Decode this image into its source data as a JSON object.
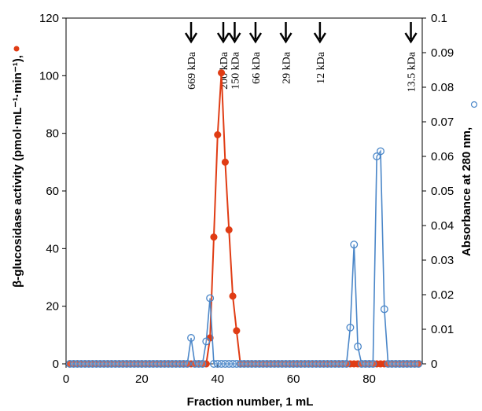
{
  "chart_data": {
    "type": "line",
    "xlabel": "Fraction number, 1 mL",
    "ylabel_left": "β-glucosidase activity (pmol·mL⁻¹·min⁻¹),",
    "ylabel_right": "Absorbance at 280 nm,",
    "xlim": [
      0,
      94
    ],
    "ylim_left": [
      0,
      120
    ],
    "ylim_right": [
      0,
      0.1
    ],
    "x_ticks": [
      "0",
      "20",
      "40",
      "60",
      "80"
    ],
    "y_left_ticks": [
      "0",
      "20",
      "40",
      "60",
      "80",
      "100",
      "120"
    ],
    "y_right_ticks": [
      "0",
      "0.01",
      "0.02",
      "0.03",
      "0.04",
      "0.05",
      "0.06",
      "0.07",
      "0.08",
      "0.09",
      "0.1"
    ],
    "grid": false,
    "colors": {
      "activity": "#e03c14",
      "absorbance": "#4a86c8"
    },
    "markers": [
      {
        "label": "669 kDa",
        "x": 33
      },
      {
        "label": "200 kDa",
        "x": 41.5
      },
      {
        "label": "150 kDa",
        "x": 44.5
      },
      {
        "label": "66 kDa",
        "x": 50
      },
      {
        "label": "29 kDa",
        "x": 58
      },
      {
        "label": "12 kDa",
        "x": 67
      },
      {
        "label": "13.5 kDa",
        "x": 91
      }
    ],
    "series": [
      {
        "axis": "left",
        "color": "#e03c14",
        "marker": "filled-circle",
        "points": [
          [
            1,
            0
          ],
          [
            2,
            0
          ],
          [
            3,
            0
          ],
          [
            4,
            0
          ],
          [
            5,
            0
          ],
          [
            6,
            0
          ],
          [
            7,
            0
          ],
          [
            8,
            0
          ],
          [
            9,
            0
          ],
          [
            10,
            0
          ],
          [
            11,
            0
          ],
          [
            12,
            0
          ],
          [
            13,
            0
          ],
          [
            14,
            0
          ],
          [
            15,
            0
          ],
          [
            16,
            0
          ],
          [
            17,
            0
          ],
          [
            18,
            0
          ],
          [
            19,
            0
          ],
          [
            20,
            0
          ],
          [
            21,
            0
          ],
          [
            22,
            0
          ],
          [
            23,
            0
          ],
          [
            24,
            0
          ],
          [
            25,
            0
          ],
          [
            26,
            0
          ],
          [
            27,
            0
          ],
          [
            28,
            0
          ],
          [
            29,
            0
          ],
          [
            30,
            0
          ],
          [
            31,
            0
          ],
          [
            32,
            0
          ],
          [
            33,
            0
          ],
          [
            34,
            0
          ],
          [
            35,
            0
          ],
          [
            36,
            0
          ],
          [
            37,
            0
          ],
          [
            38,
            9
          ],
          [
            39,
            44
          ],
          [
            40,
            79.5
          ],
          [
            41,
            101
          ],
          [
            42,
            70
          ],
          [
            43,
            46.5
          ],
          [
            44,
            23.5
          ],
          [
            45,
            11.5
          ],
          [
            46,
            0
          ],
          [
            47,
            0
          ],
          [
            48,
            0
          ],
          [
            49,
            0
          ],
          [
            50,
            0
          ],
          [
            51,
            0
          ],
          [
            52,
            0
          ],
          [
            53,
            0
          ],
          [
            54,
            0
          ],
          [
            55,
            0
          ],
          [
            56,
            0
          ],
          [
            57,
            0
          ],
          [
            58,
            0
          ],
          [
            59,
            0
          ],
          [
            60,
            0
          ],
          [
            61,
            0
          ],
          [
            62,
            0
          ],
          [
            63,
            0
          ],
          [
            64,
            0
          ],
          [
            65,
            0
          ],
          [
            66,
            0
          ],
          [
            67,
            0
          ],
          [
            68,
            0
          ],
          [
            69,
            0
          ],
          [
            70,
            0
          ],
          [
            71,
            0
          ],
          [
            72,
            0
          ],
          [
            73,
            0
          ],
          [
            74,
            0
          ],
          [
            75,
            0
          ],
          [
            76,
            0
          ],
          [
            77,
            0
          ],
          [
            78,
            0
          ],
          [
            79,
            0
          ],
          [
            80,
            0
          ],
          [
            81,
            0
          ],
          [
            82,
            0
          ],
          [
            83,
            0
          ],
          [
            84,
            0
          ],
          [
            85,
            0
          ],
          [
            86,
            0
          ],
          [
            87,
            0
          ],
          [
            88,
            0
          ],
          [
            89,
            0
          ],
          [
            90,
            0
          ],
          [
            91,
            0
          ],
          [
            92,
            0
          ],
          [
            93,
            0
          ]
        ]
      },
      {
        "axis": "right",
        "color": "#4a86c8",
        "marker": "open-circle",
        "points": [
          [
            1,
            0
          ],
          [
            2,
            0
          ],
          [
            3,
            0
          ],
          [
            4,
            0
          ],
          [
            5,
            0
          ],
          [
            6,
            0
          ],
          [
            7,
            0
          ],
          [
            8,
            0
          ],
          [
            9,
            0
          ],
          [
            10,
            0
          ],
          [
            11,
            0
          ],
          [
            12,
            0
          ],
          [
            13,
            0
          ],
          [
            14,
            0
          ],
          [
            15,
            0
          ],
          [
            16,
            0
          ],
          [
            17,
            0
          ],
          [
            18,
            0
          ],
          [
            19,
            0
          ],
          [
            20,
            0
          ],
          [
            21,
            0
          ],
          [
            22,
            0
          ],
          [
            23,
            0
          ],
          [
            24,
            0
          ],
          [
            25,
            0
          ],
          [
            26,
            0
          ],
          [
            27,
            0
          ],
          [
            28,
            0
          ],
          [
            29,
            0
          ],
          [
            30,
            0
          ],
          [
            31,
            0
          ],
          [
            32,
            0
          ],
          [
            33,
            0.0075
          ],
          [
            34,
            0
          ],
          [
            35,
            0
          ],
          [
            36,
            0
          ],
          [
            37,
            0.0065
          ],
          [
            38,
            0.019
          ],
          [
            39,
            0
          ],
          [
            40,
            0
          ],
          [
            41,
            0
          ],
          [
            42,
            0
          ],
          [
            43,
            0
          ],
          [
            44,
            0
          ],
          [
            45,
            0
          ],
          [
            46,
            0
          ],
          [
            47,
            0
          ],
          [
            48,
            0
          ],
          [
            49,
            0
          ],
          [
            50,
            0
          ],
          [
            51,
            0
          ],
          [
            52,
            0
          ],
          [
            53,
            0
          ],
          [
            54,
            0
          ],
          [
            55,
            0
          ],
          [
            56,
            0
          ],
          [
            57,
            0
          ],
          [
            58,
            0
          ],
          [
            59,
            0
          ],
          [
            60,
            0
          ],
          [
            61,
            0
          ],
          [
            62,
            0
          ],
          [
            63,
            0
          ],
          [
            64,
            0
          ],
          [
            65,
            0
          ],
          [
            66,
            0
          ],
          [
            67,
            0
          ],
          [
            68,
            0
          ],
          [
            69,
            0
          ],
          [
            70,
            0
          ],
          [
            71,
            0
          ],
          [
            72,
            0
          ],
          [
            73,
            0
          ],
          [
            74,
            0
          ],
          [
            75,
            0.0105
          ],
          [
            76,
            0.0345
          ],
          [
            77,
            0.005
          ],
          [
            78,
            0
          ],
          [
            79,
            0
          ],
          [
            80,
            0
          ],
          [
            81,
            0
          ],
          [
            82,
            0.06
          ],
          [
            83,
            0.0615
          ],
          [
            84,
            0.0158
          ],
          [
            85,
            0
          ],
          [
            86,
            0
          ],
          [
            87,
            0
          ],
          [
            88,
            0
          ],
          [
            89,
            0
          ],
          [
            90,
            0
          ],
          [
            91,
            0
          ],
          [
            92,
            0
          ],
          [
            93,
            0
          ]
        ]
      }
    ]
  }
}
